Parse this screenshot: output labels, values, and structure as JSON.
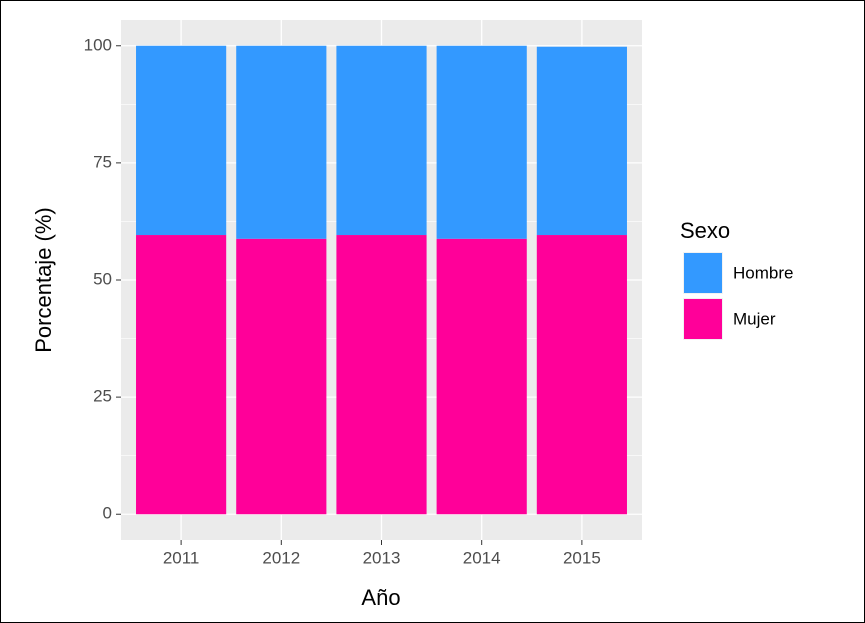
{
  "chart_data": {
    "type": "stacked_bar",
    "x_label": "Año",
    "y_label": "Porcentaje (%)",
    "categories": [
      "2011",
      "2012",
      "2013",
      "2014",
      "2015"
    ],
    "series": [
      {
        "name": "Hombre",
        "color": "#3399ff",
        "values": [
          40.4,
          41.2,
          40.4,
          41.2,
          40.2
        ]
      },
      {
        "name": "Mujer",
        "color": "#ff0099",
        "values": [
          59.6,
          58.8,
          59.6,
          58.8,
          59.6
        ]
      }
    ],
    "ylim": [
      -5.5,
      105.5
    ],
    "yticks": [
      0,
      25,
      50,
      75,
      100
    ],
    "grid": true,
    "legend_title": "Sexo",
    "legend_position": "right"
  }
}
